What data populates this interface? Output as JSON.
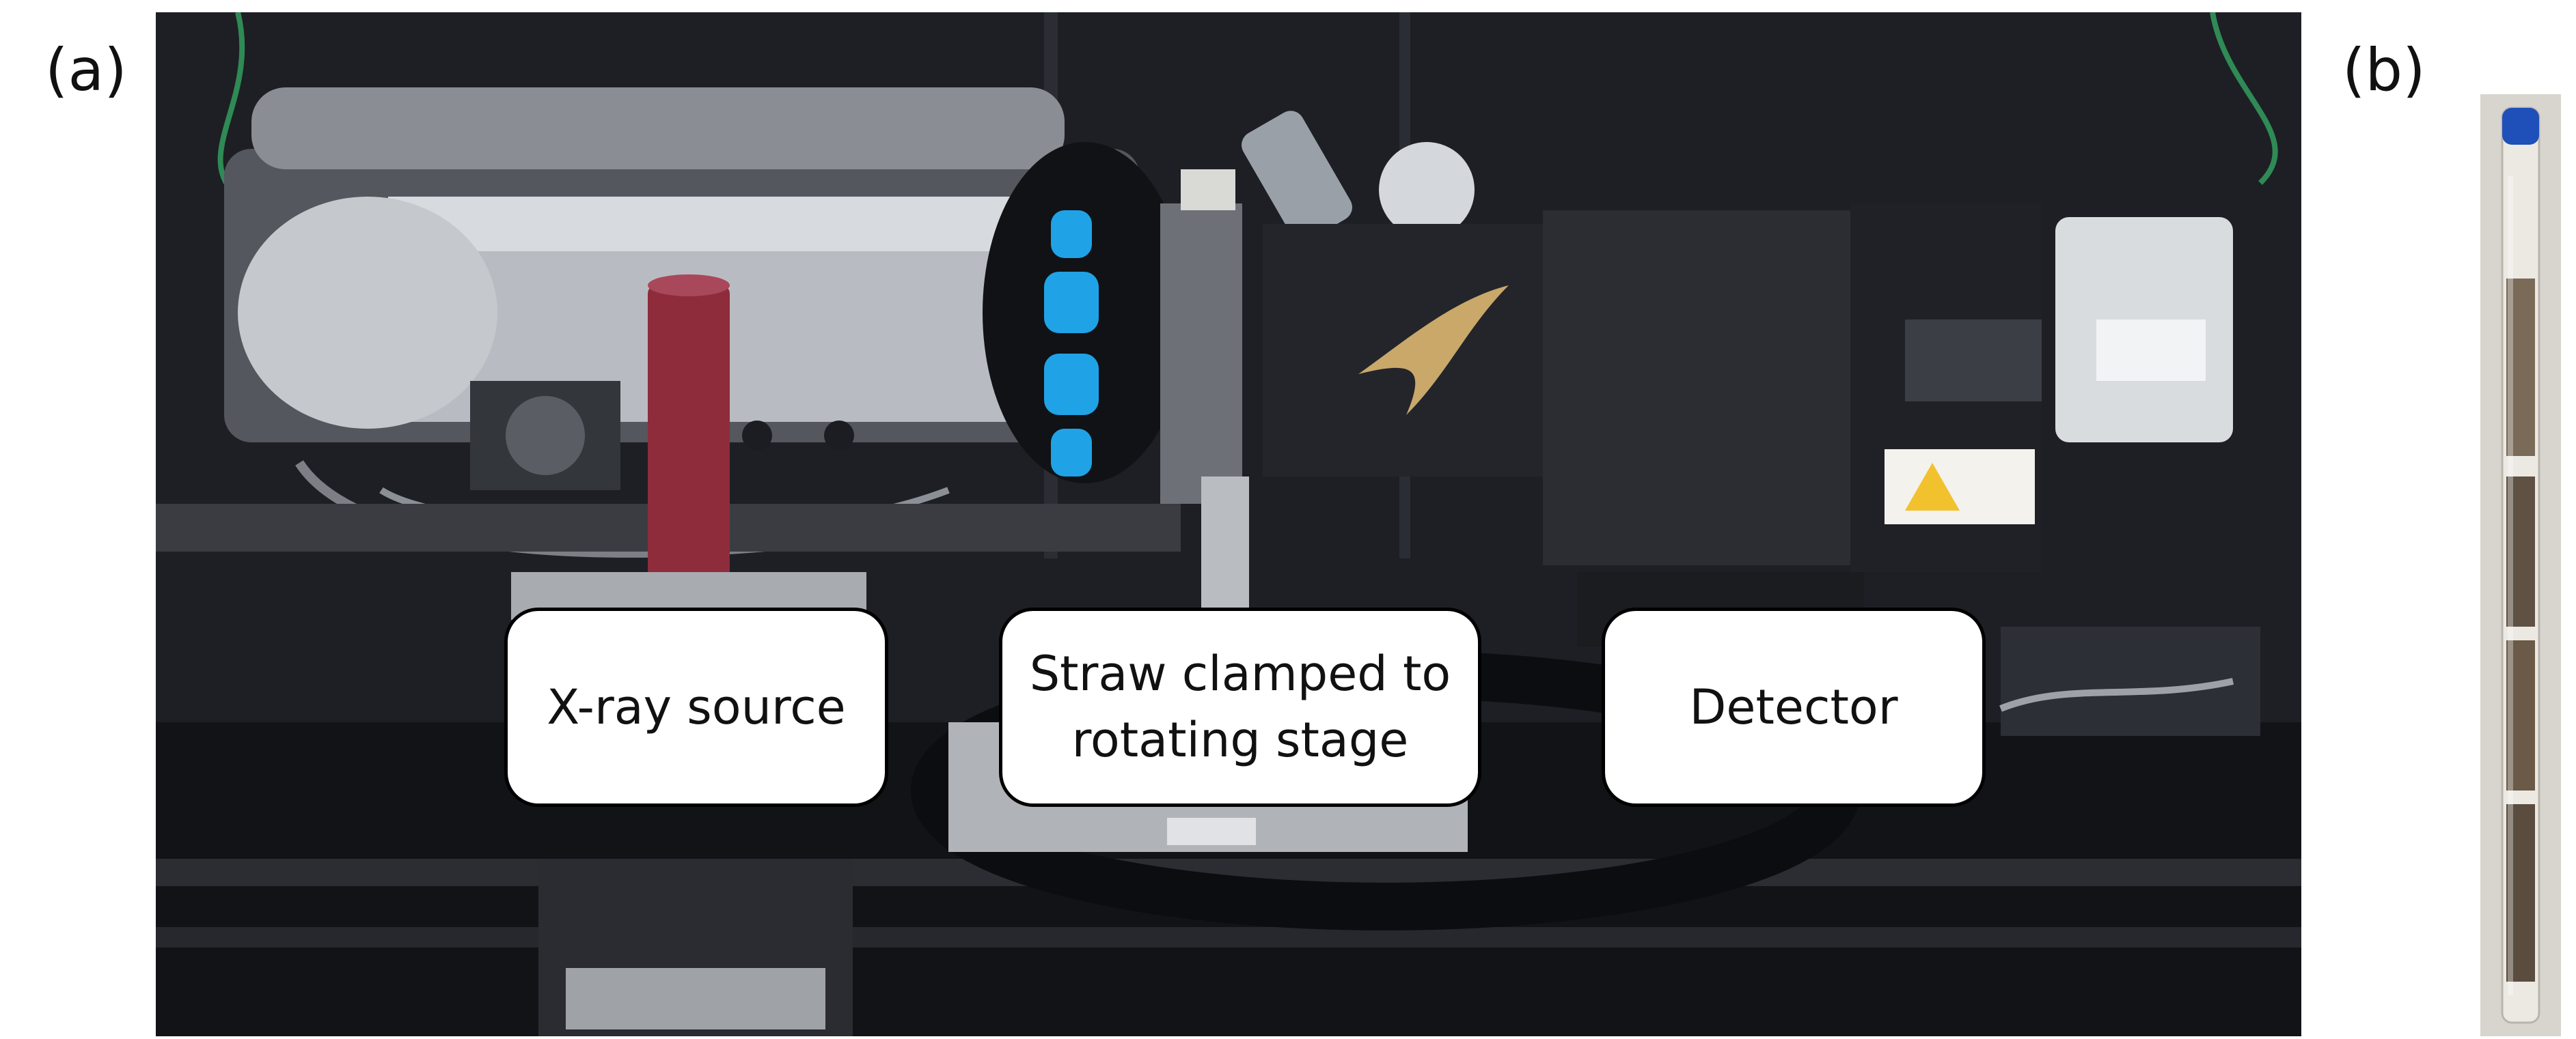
{
  "panels": {
    "a": {
      "label": "(a)"
    },
    "b": {
      "label": "(b)"
    }
  },
  "callouts": {
    "xray_source": "X-ray source",
    "straw_stage": "Straw clamped to\nrotating stage",
    "detector": "Detector"
  },
  "colors": {
    "background": "#1b1d22",
    "xray_tube_red": "#8e2c3c",
    "collimator_blue": "#1fa3e6",
    "detector_gold": "#c9a86a",
    "straw_sample": "#6b5a48"
  }
}
